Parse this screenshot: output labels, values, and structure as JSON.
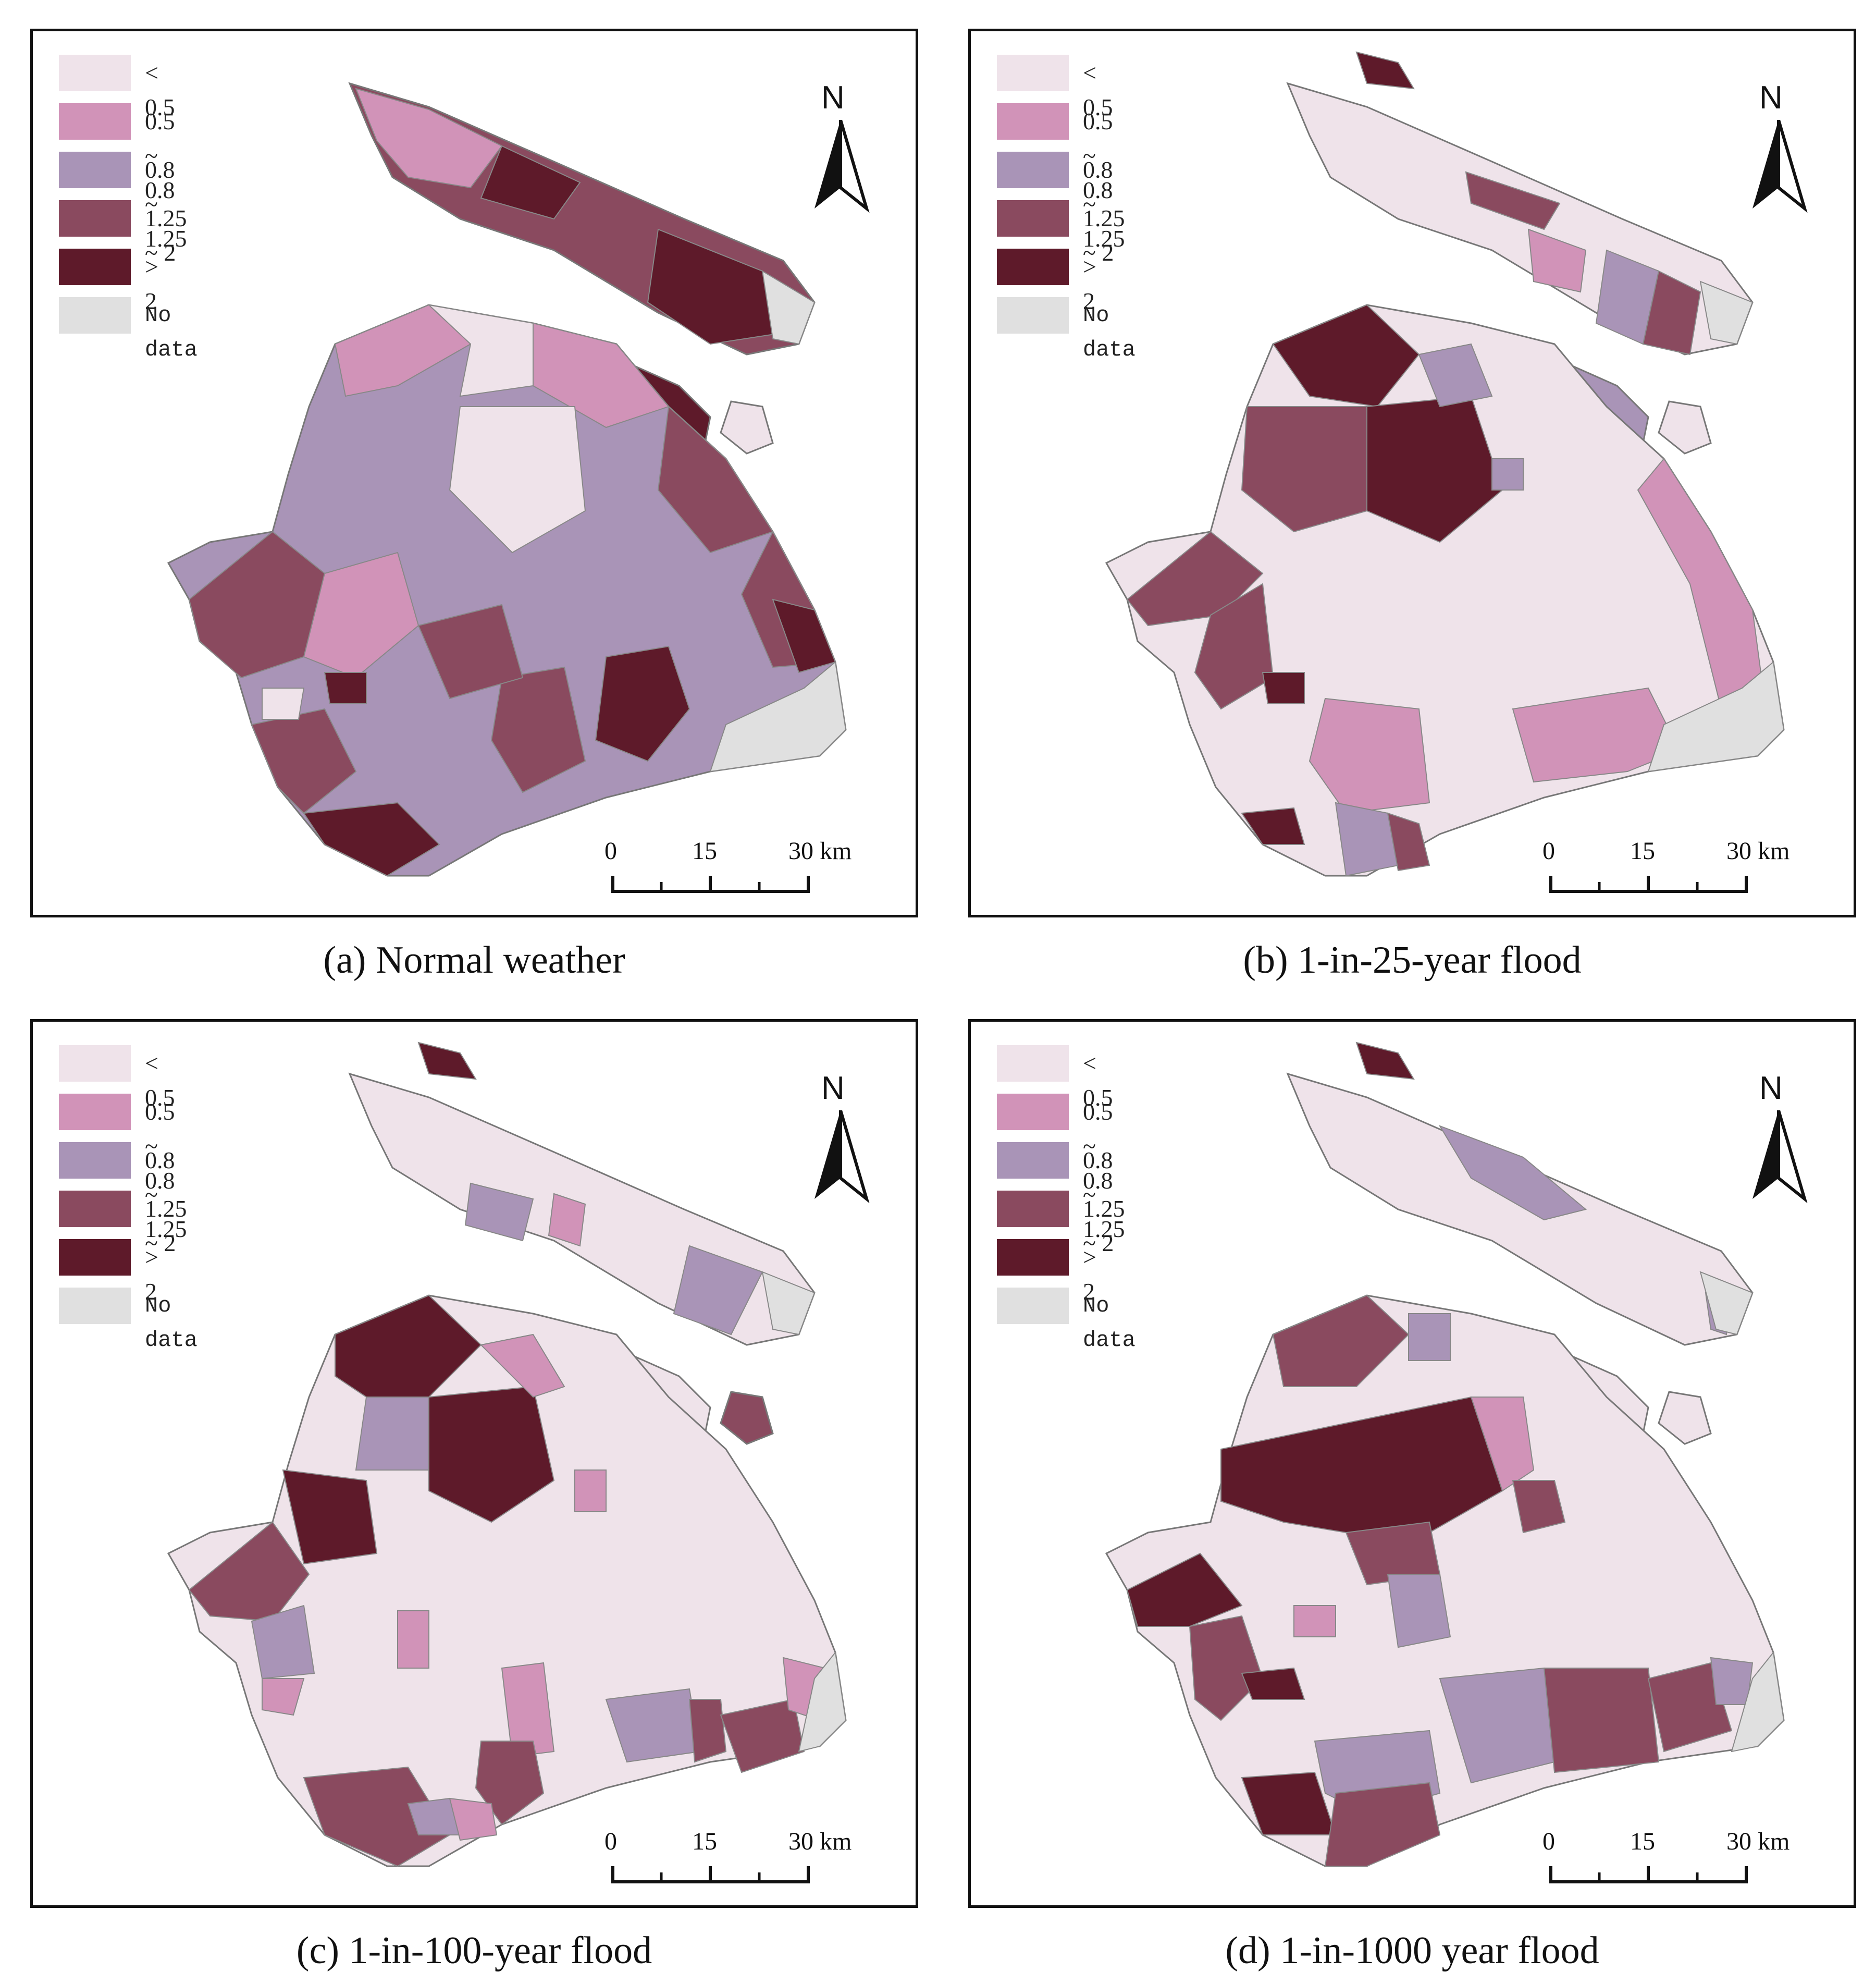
{
  "legend": {
    "items": [
      {
        "label": "< 0.5",
        "color": "#EFE3EA"
      },
      {
        "label": "0.5 ~ 0.8",
        "color": "#D193B8"
      },
      {
        "label": "0.8 ~ 1.25",
        "color": "#A994B7"
      },
      {
        "label": "1.25 ~ 2",
        "color": "#8A4A5F"
      },
      {
        "label": "> 2",
        "color": "#5E1A2A"
      },
      {
        "label": "No data",
        "color": "#E0E0E0"
      }
    ]
  },
  "north_arrow": {
    "label": "N"
  },
  "scale_bar": {
    "ticks": [
      "0",
      "15",
      "30 km"
    ]
  },
  "panels": [
    {
      "caption": "(a) Normal weather"
    },
    {
      "caption": "(b) 1-in-25-year flood"
    },
    {
      "caption": "(c) 1-in-100-year flood"
    },
    {
      "caption": "(d) 1-in-1000 year flood"
    }
  ]
}
